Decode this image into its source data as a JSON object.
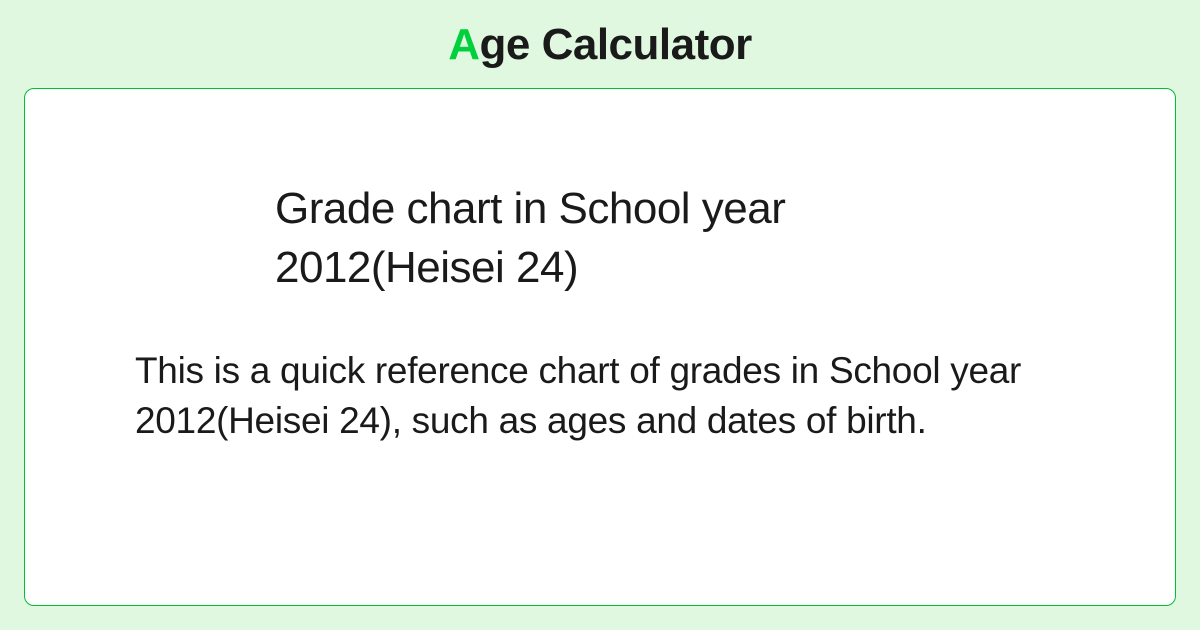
{
  "logo": {
    "accent_letter": "A",
    "rest": "ge Calculator",
    "accent_color": "#00d03c",
    "text_color": "#1a1a1a"
  },
  "card": {
    "heading": "Grade chart in School year 2012(Heisei 24)",
    "description": "This is a quick reference chart of grades in School year 2012(Heisei 24), such as ages and dates of birth.",
    "background_color": "#ffffff",
    "border_color": "#00c030"
  },
  "page": {
    "background_color": "#e0f8e0"
  }
}
